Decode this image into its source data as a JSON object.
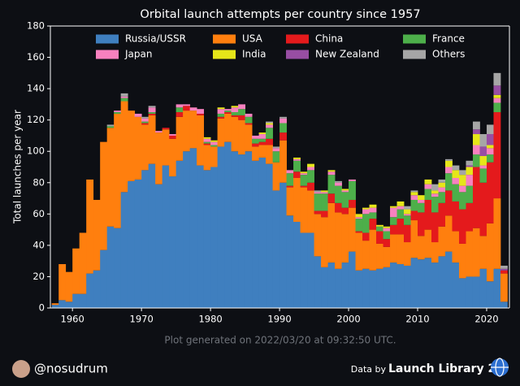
{
  "chart_data": {
    "type": "bar",
    "stacked": true,
    "title": "Orbital launch attempts per country since 1957",
    "ylabel": "Total launches per year",
    "x": [
      1957,
      1958,
      1959,
      1960,
      1961,
      1962,
      1963,
      1964,
      1965,
      1966,
      1967,
      1968,
      1969,
      1970,
      1971,
      1972,
      1973,
      1974,
      1975,
      1976,
      1977,
      1978,
      1979,
      1980,
      1981,
      1982,
      1983,
      1984,
      1985,
      1986,
      1987,
      1988,
      1989,
      1990,
      1991,
      1992,
      1993,
      1994,
      1995,
      1996,
      1997,
      1998,
      1999,
      2000,
      2001,
      2002,
      2003,
      2004,
      2005,
      2006,
      2007,
      2008,
      2009,
      2010,
      2011,
      2012,
      2013,
      2014,
      2015,
      2016,
      2017,
      2018,
      2019,
      2020,
      2021,
      2022
    ],
    "series": [
      {
        "name": "Russia/USSR",
        "color": "#3f7fbf",
        "values": [
          2,
          5,
          4,
          9,
          9,
          22,
          24,
          37,
          52,
          51,
          74,
          81,
          82,
          88,
          92,
          79,
          91,
          84,
          94,
          100,
          102,
          91,
          88,
          90,
          103,
          106,
          100,
          98,
          100,
          94,
          96,
          92,
          75,
          80,
          59,
          55,
          48,
          48,
          33,
          26,
          29,
          25,
          29,
          36,
          24,
          25,
          24,
          25,
          26,
          29,
          28,
          27,
          32,
          31,
          32,
          29,
          33,
          36,
          29,
          19,
          20,
          20,
          25,
          17,
          25,
          4
        ]
      },
      {
        "name": "USA",
        "color": "#ff7f0e",
        "values": [
          1,
          23,
          19,
          29,
          39,
          60,
          45,
          69,
          63,
          73,
          58,
          45,
          40,
          29,
          31,
          33,
          23,
          24,
          28,
          26,
          24,
          32,
          16,
          13,
          18,
          18,
          22,
          22,
          17,
          9,
          8,
          12,
          18,
          27,
          18,
          28,
          29,
          27,
          27,
          32,
          38,
          36,
          31,
          28,
          24,
          18,
          26,
          16,
          13,
          18,
          19,
          15,
          24,
          15,
          18,
          13,
          19,
          23,
          20,
          22,
          29,
          31,
          21,
          37,
          45,
          18
        ]
      },
      {
        "name": "China",
        "color": "#e41a1c",
        "values": [
          0,
          0,
          0,
          0,
          0,
          0,
          0,
          0,
          0,
          0,
          0,
          0,
          0,
          1,
          1,
          0,
          1,
          2,
          3,
          3,
          0,
          1,
          1,
          0,
          1,
          1,
          1,
          3,
          1,
          2,
          2,
          4,
          0,
          5,
          1,
          4,
          1,
          5,
          2,
          4,
          6,
          6,
          4,
          5,
          1,
          5,
          7,
          8,
          5,
          6,
          10,
          11,
          6,
          15,
          19,
          19,
          15,
          16,
          19,
          22,
          18,
          39,
          34,
          39,
          55,
          2
        ]
      },
      {
        "name": "France",
        "color": "#4daf4a",
        "values": [
          0,
          0,
          0,
          0,
          0,
          0,
          0,
          0,
          1,
          1,
          2,
          0,
          0,
          1,
          1,
          0,
          0,
          0,
          3,
          0,
          0,
          0,
          1,
          1,
          2,
          1,
          2,
          4,
          4,
          3,
          2,
          7,
          7,
          6,
          8,
          7,
          7,
          8,
          11,
          11,
          12,
          11,
          10,
          12,
          8,
          12,
          4,
          3,
          5,
          5,
          6,
          6,
          7,
          6,
          7,
          10,
          7,
          11,
          11,
          11,
          11,
          8,
          9,
          5,
          6,
          0
        ]
      },
      {
        "name": "Japan",
        "color": "#f781bf",
        "values": [
          0,
          0,
          0,
          0,
          0,
          0,
          0,
          0,
          0,
          1,
          1,
          0,
          2,
          2,
          3,
          1,
          0,
          1,
          2,
          1,
          2,
          3,
          2,
          2,
          3,
          1,
          3,
          3,
          2,
          2,
          3,
          2,
          2,
          3,
          2,
          1,
          1,
          2,
          1,
          1,
          2,
          2,
          1,
          1,
          1,
          3,
          3,
          0,
          2,
          6,
          2,
          1,
          3,
          2,
          3,
          2,
          3,
          4,
          4,
          4,
          7,
          6,
          2,
          4,
          3,
          0
        ]
      },
      {
        "name": "India",
        "color": "#e6e619",
        "values": [
          0,
          0,
          0,
          0,
          0,
          0,
          0,
          0,
          0,
          0,
          0,
          0,
          0,
          0,
          0,
          0,
          0,
          0,
          0,
          0,
          0,
          0,
          1,
          1,
          1,
          0,
          1,
          0,
          0,
          0,
          1,
          1,
          0,
          0,
          0,
          1,
          1,
          2,
          0,
          1,
          1,
          0,
          1,
          0,
          2,
          1,
          2,
          1,
          1,
          1,
          3,
          3,
          2,
          3,
          3,
          2,
          3,
          4,
          5,
          7,
          5,
          7,
          6,
          2,
          2,
          0
        ]
      },
      {
        "name": "New Zealand",
        "color": "#984ea3",
        "values": [
          0,
          0,
          0,
          0,
          0,
          0,
          0,
          0,
          0,
          0,
          0,
          0,
          0,
          0,
          0,
          0,
          0,
          0,
          0,
          0,
          0,
          0,
          0,
          0,
          0,
          0,
          0,
          0,
          0,
          0,
          0,
          0,
          0,
          0,
          0,
          0,
          0,
          0,
          0,
          0,
          0,
          0,
          0,
          0,
          0,
          0,
          0,
          0,
          0,
          0,
          0,
          0,
          0,
          0,
          0,
          0,
          0,
          0,
          0,
          0,
          1,
          3,
          6,
          7,
          6,
          1
        ]
      },
      {
        "name": "Others",
        "color": "#a6a6a6",
        "values": [
          0,
          0,
          0,
          0,
          0,
          0,
          0,
          0,
          1,
          0,
          2,
          0,
          0,
          1,
          1,
          0,
          0,
          0,
          0,
          0,
          0,
          0,
          0,
          0,
          0,
          0,
          0,
          0,
          0,
          0,
          0,
          1,
          1,
          1,
          0,
          0,
          0,
          0,
          1,
          0,
          0,
          1,
          0,
          0,
          0,
          0,
          0,
          0,
          0,
          0,
          0,
          2,
          1,
          0,
          0,
          4,
          2,
          1,
          3,
          3,
          3,
          5,
          8,
          6,
          8,
          2
        ]
      }
    ],
    "xlim": [
      1956.8,
      2023.3
    ],
    "xticks": [
      1960,
      1970,
      1980,
      1990,
      2000,
      2010,
      2020
    ],
    "ylim": [
      0,
      180
    ],
    "yticks": [
      0,
      20,
      40,
      60,
      80,
      100,
      120,
      140,
      160,
      180
    ],
    "legend": "upper"
  },
  "footer": {
    "generated": "Plot generated on 2022/03/20 at 09:32:50 UTC.",
    "author": "@nosudrum",
    "data_by": "Data by",
    "source": "Launch Library 2"
  }
}
